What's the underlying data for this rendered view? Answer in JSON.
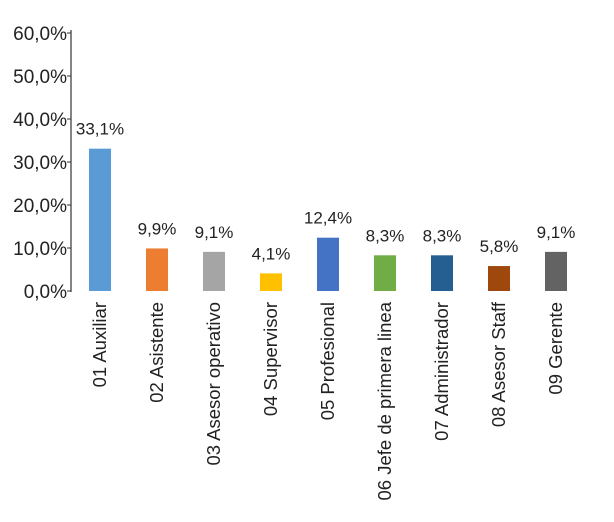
{
  "chart_data": {
    "type": "bar",
    "categories": [
      "01 Auxiliar",
      "02 Asistente",
      "03 Asesor operativo",
      "04 Supervisor",
      "05 Profesional",
      "06 Jefe de primera linea",
      "07 Administrador",
      "08 Asesor Staff",
      "09 Gerente"
    ],
    "values": [
      33.1,
      9.9,
      9.1,
      4.1,
      12.4,
      8.3,
      8.3,
      5.8,
      9.1
    ],
    "data_labels": [
      "33,1%",
      "9,9%",
      "9,1%",
      "4,1%",
      "12,4%",
      "8,3%",
      "8,3%",
      "5,8%",
      "9,1%"
    ],
    "colors": [
      "#5b9bd5",
      "#ed7d31",
      "#a5a5a5",
      "#ffc000",
      "#4472c4",
      "#70ad47",
      "#255e91",
      "#9e480e",
      "#636363"
    ],
    "yticks": [
      0,
      10,
      20,
      30,
      40,
      50,
      60
    ],
    "ytick_labels": [
      "0,0%",
      "10,0%",
      "20,0%",
      "30,0%",
      "40,0%",
      "50,0%",
      "60,0%"
    ],
    "ylim": [
      0,
      60
    ],
    "title": "",
    "xlabel": "",
    "ylabel": "",
    "grid": false,
    "legend": "none"
  }
}
